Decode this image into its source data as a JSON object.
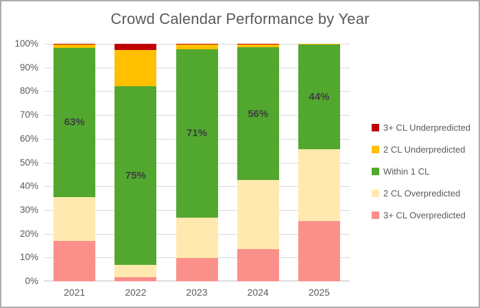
{
  "title": "Crowd Calendar Performance by Year",
  "colors": {
    "background": "#FFFFFF",
    "frame_border": "#ABABAB",
    "title_text": "#595959",
    "axis_text": "#595959",
    "gridline": "#D9D9D9",
    "axis_line": "#BFBFBF",
    "data_label_text": "#3F3F3F"
  },
  "chart_data": {
    "type": "bar",
    "subtype": "100-percent-stacked-column",
    "title": "Crowd Calendar Performance by Year",
    "xlabel": "",
    "ylabel": "",
    "ylim": [
      0,
      100
    ],
    "grid": true,
    "legend_position": "right",
    "categories": [
      "2021",
      "2022",
      "2023",
      "2024",
      "2025"
    ],
    "series": [
      {
        "name": "3+ CL Overpredicted",
        "color": "#FB8F8A",
        "values": [
          17.1,
          1.7,
          9.7,
          13.6,
          25.5
        ]
      },
      {
        "name": "2 CL Overpredicted",
        "color": "#FFE9AE",
        "values": [
          18.3,
          5.3,
          17.1,
          29.0,
          30.2
        ]
      },
      {
        "name": "Within 1 CL",
        "color": "#52A82F",
        "values": [
          63,
          75,
          71,
          56,
          44
        ]
      },
      {
        "name": "2 CL Underpredicted",
        "color": "#FFC000",
        "values": [
          1.2,
          15.4,
          1.8,
          1.0,
          0.3
        ]
      },
      {
        "name": "3+ CL Underpredicted",
        "color": "#C00000",
        "values": [
          0.4,
          2.6,
          0.4,
          0.4,
          0
        ]
      }
    ],
    "data_labels": {
      "series": "Within 1 CL",
      "labels": [
        "63%",
        "75%",
        "71%",
        "56%",
        "44%"
      ]
    },
    "y_ticks": [
      "0%",
      "10%",
      "20%",
      "30%",
      "40%",
      "50%",
      "60%",
      "70%",
      "80%",
      "90%",
      "100%"
    ],
    "legend_order": [
      "3+ CL Underpredicted",
      "2 CL Underpredicted",
      "Within 1 CL",
      "2 CL Overpredicted",
      "3+ CL Overpredicted"
    ]
  }
}
